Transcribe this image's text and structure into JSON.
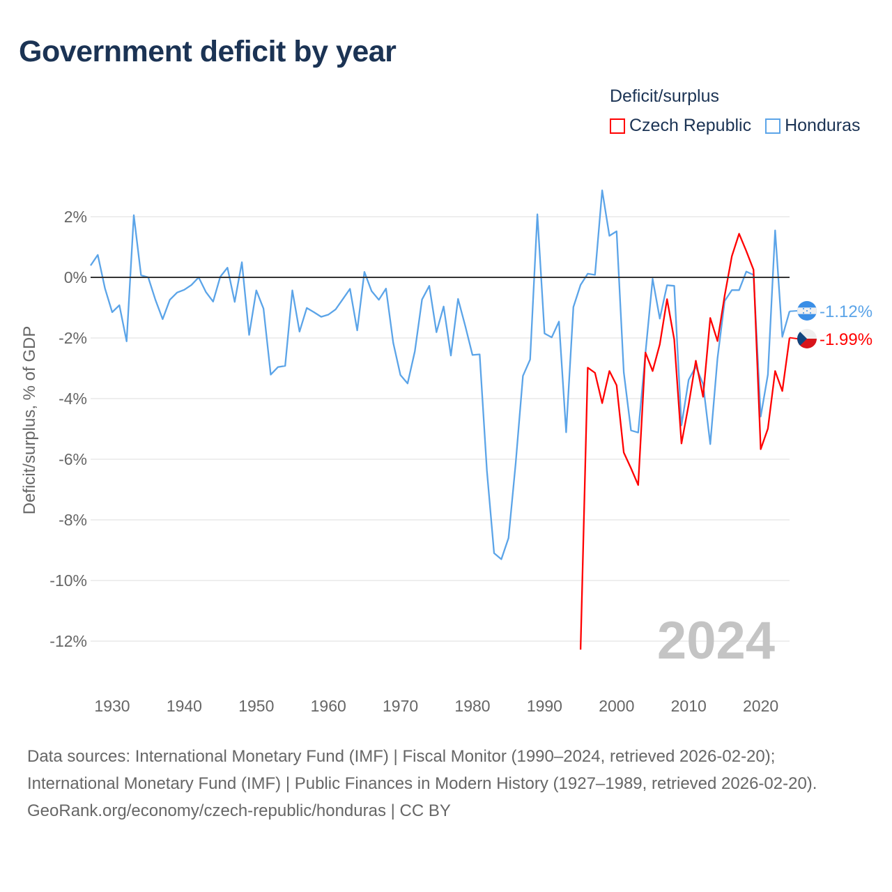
{
  "title": "Government deficit by year",
  "legend": {
    "title": "Deficit/surplus",
    "items": [
      {
        "label": "Czech Republic",
        "color": "#ff0000"
      },
      {
        "label": "Honduras",
        "color": "#5ba4e8"
      }
    ]
  },
  "watermark_year": "2024",
  "footer": {
    "sources": "Data sources: International Monetary Fund (IMF) | Fiscal Monitor (1990–2024, retrieved 2026-02-20); International Monetary Fund (IMF) | Public Finances in Modern History (1927–1989, retrieved 2026-02-20).",
    "credit": "GeoRank.org/economy/czech-republic/honduras | CC BY"
  },
  "chart_data": {
    "type": "line",
    "title": "Government deficit by year",
    "xlabel": "",
    "ylabel": "Deficit/surplus, % of GDP",
    "xlim": [
      1927,
      2024
    ],
    "ylim": [
      -13,
      3
    ],
    "xticks": [
      1930,
      1940,
      1950,
      1960,
      1970,
      1980,
      1990,
      2000,
      2010,
      2020
    ],
    "yticks": [
      2,
      0,
      -2,
      -4,
      -6,
      -8,
      -10,
      -12
    ],
    "ytick_labels": [
      "2%",
      "0%",
      "-2%",
      "-4%",
      "-6%",
      "-8%",
      "-10%",
      "-12%"
    ],
    "grid": true,
    "legend_position": "top-right",
    "series": [
      {
        "name": "Honduras",
        "color": "#5ba4e8",
        "end_label": "-1.12%",
        "flag": "honduras",
        "start_year": 1927,
        "values": [
          0.39,
          0.74,
          -0.37,
          -1.15,
          -0.92,
          -2.11,
          2.05,
          0.07,
          0.0,
          -0.74,
          -1.38,
          -0.74,
          -0.5,
          -0.41,
          -0.25,
          0.0,
          -0.48,
          -0.8,
          0.02,
          0.32,
          -0.81,
          0.5,
          -1.9,
          -0.43,
          -1.03,
          -3.21,
          -2.96,
          -2.92,
          -0.43,
          -1.79,
          -1.01,
          -1.15,
          -1.3,
          -1.23,
          -1.06,
          -0.72,
          -0.38,
          -1.75,
          0.18,
          -0.45,
          -0.74,
          -0.37,
          -2.16,
          -3.22,
          -3.5,
          -2.44,
          -0.73,
          -0.28,
          -1.81,
          -0.96,
          -2.58,
          -0.71,
          -1.61,
          -2.56,
          -2.54,
          -6.38,
          -9.1,
          -9.3,
          -8.6,
          -6.13,
          -3.25,
          -2.71,
          2.08,
          -1.85,
          -1.98,
          -1.46,
          -5.11,
          -0.98,
          -0.25,
          0.12,
          0.08,
          2.87,
          1.37,
          1.52,
          -3.13,
          -5.05,
          -5.12,
          -2.5,
          -0.05,
          -1.36,
          -0.26,
          -0.28,
          -4.88,
          -3.38,
          -2.94,
          -3.52,
          -5.5,
          -2.67,
          -0.78,
          -0.42,
          -0.42,
          0.19,
          0.08,
          -4.59,
          -3.21,
          1.55,
          -1.96,
          -1.12
        ]
      },
      {
        "name": "Czech Republic",
        "color": "#ff0000",
        "end_label": "-1.99%",
        "flag": "czech-republic",
        "start_year": 1995,
        "values": [
          -12.28,
          -2.98,
          -3.15,
          -4.15,
          -3.09,
          -3.56,
          -5.78,
          -6.3,
          -6.85,
          -2.48,
          -3.09,
          -2.21,
          -0.72,
          -2.05,
          -5.48,
          -4.2,
          -2.75,
          -3.94,
          -1.34,
          -2.1,
          -0.6,
          0.7,
          1.44,
          0.87,
          0.25,
          -5.67,
          -4.99,
          -3.09,
          -3.75,
          -1.99
        ]
      }
    ]
  }
}
